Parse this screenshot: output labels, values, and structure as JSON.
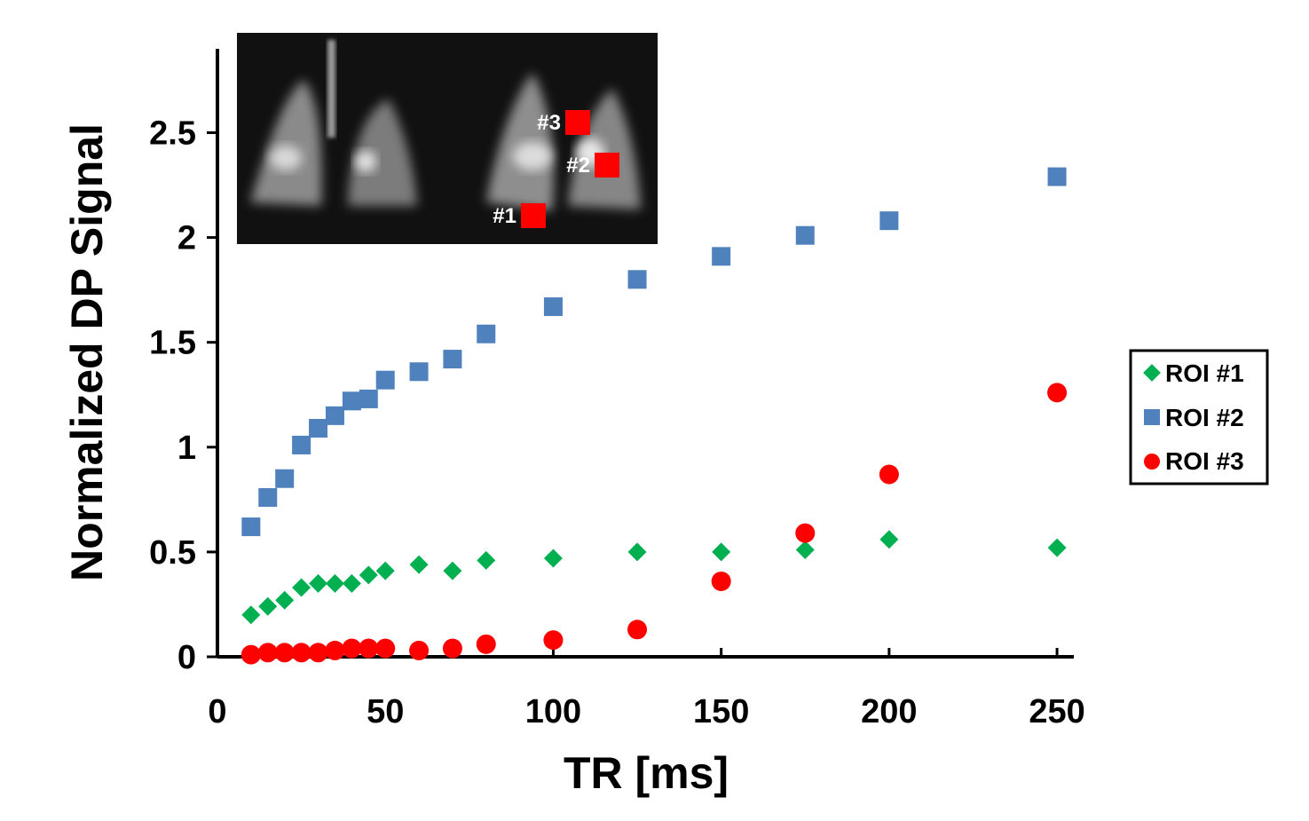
{
  "chart_data": {
    "type": "scatter",
    "xlabel": "TR [ms]",
    "ylabel": "Normalized DP Signal",
    "xlim": [
      0,
      255
    ],
    "ylim": [
      0,
      2.9
    ],
    "xticks": [
      0,
      50,
      100,
      150,
      200,
      250
    ],
    "xtick_labels": [
      "0",
      "50",
      "100",
      "150",
      "200",
      "250"
    ],
    "yticks": [
      0,
      0.5,
      1,
      1.5,
      2,
      2.5
    ],
    "ytick_labels": [
      "0",
      "0.5",
      "1",
      "1.5",
      "2",
      "2.5"
    ],
    "grid": false,
    "legend_position": "right",
    "x": [
      10,
      15,
      20,
      25,
      30,
      35,
      40,
      45,
      50,
      60,
      70,
      80,
      100,
      125,
      150,
      175,
      200,
      250
    ],
    "series": [
      {
        "name": "ROI #1",
        "marker": "diamond",
        "color": "#00b050",
        "values": [
          0.2,
          0.24,
          0.27,
          0.33,
          0.35,
          0.35,
          0.35,
          0.39,
          0.41,
          0.44,
          0.41,
          0.46,
          0.47,
          0.5,
          0.5,
          0.51,
          0.56,
          0.52
        ]
      },
      {
        "name": "ROI #2",
        "marker": "square",
        "color": "#4f81bd",
        "values": [
          0.62,
          0.76,
          0.85,
          1.01,
          1.09,
          1.15,
          1.22,
          1.23,
          1.32,
          1.36,
          1.42,
          1.54,
          1.67,
          1.8,
          1.91,
          2.01,
          2.08,
          2.29
        ]
      },
      {
        "name": "ROI #3",
        "marker": "circle",
        "color": "#ff0000",
        "values": [
          0.01,
          0.02,
          0.02,
          0.02,
          0.02,
          0.03,
          0.04,
          0.04,
          0.04,
          0.03,
          0.04,
          0.06,
          0.08,
          0.13,
          0.36,
          0.59,
          0.87,
          1.26
        ]
      }
    ]
  },
  "inset": {
    "roi_labels": [
      "#1",
      "#2",
      "#3"
    ],
    "marker_color": "#ff0000"
  }
}
